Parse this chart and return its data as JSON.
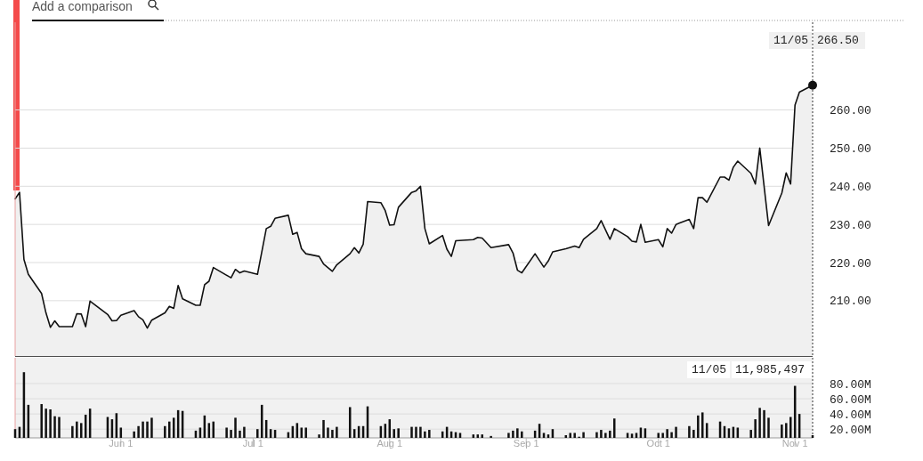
{
  "chart_data": [
    {
      "type": "area",
      "series": [
        {
          "color": "#111111",
          "x": [
            "--05-08",
            "--05-09",
            "--05-10",
            "--05-11",
            "--05-14",
            "--05-15",
            "--05-16",
            "--05-17",
            "--05-18",
            "--05-21",
            "--05-22",
            "--05-23",
            "--05-24",
            "--05-25",
            "--05-29",
            "--05-30",
            "--05-31",
            "--06-01",
            "--06-04",
            "--06-05",
            "--06-06",
            "--06-07",
            "--06-08",
            "--06-11",
            "--06-12",
            "--06-13",
            "--06-14",
            "--06-15",
            "--06-18",
            "--06-19",
            "--06-20",
            "--06-21",
            "--06-22",
            "--06-26",
            "--06-27",
            "--06-28",
            "--06-29",
            "--07-02",
            "--07-04",
            "--07-05",
            "--07-06",
            "--07-09",
            "--07-10",
            "--07-11",
            "--07-12",
            "--07-13",
            "--07-16",
            "--07-17",
            "--07-19",
            "--07-20",
            "--07-23",
            "--07-24",
            "--07-25",
            "--07-26",
            "--07-27",
            "--07-30",
            "--07-31",
            "--08-01",
            "--08-02",
            "--08-03",
            "--08-06",
            "--08-07",
            "--08-08",
            "--08-09",
            "--08-10",
            "--08-13",
            "--08-14",
            "--08-15",
            "--08-16",
            "--08-20",
            "--08-21",
            "--08-22",
            "--08-24",
            "--08-28",
            "--08-29",
            "--08-30",
            "--08-31",
            "--09-03",
            "--09-05",
            "--09-06",
            "--09-07",
            "--09-10",
            "--09-12",
            "--09-13",
            "--09-14",
            "--09-17",
            "--09-18",
            "--09-20",
            "--09-21",
            "--09-24",
            "--09-25",
            "--09-26",
            "--09-27",
            "--09-28",
            "--10-01",
            "--10-02",
            "--10-03",
            "--10-04",
            "--10-05",
            "--10-08",
            "--10-09",
            "--10-10",
            "--10-11",
            "--10-12",
            "--10-15",
            "--10-16",
            "--10-17",
            "--10-18",
            "--10-19",
            "--10-22",
            "--10-23",
            "--10-24",
            "--10-26",
            "--10-29",
            "--10-30",
            "--10-31",
            "--11-01",
            "--11-02",
            "--11-05"
          ],
          "values": [
            236.7,
            238.4,
            220.8,
            216.9,
            211.9,
            206.8,
            203.0,
            204.7,
            203.2,
            203.2,
            206.6,
            206.5,
            203.2,
            209.9,
            206.4,
            204.7,
            204.8,
            206.2,
            207.4,
            205.8,
            205.0,
            202.8,
            204.9,
            206.8,
            208.5,
            208.0,
            214.0,
            210.5,
            208.8,
            208.8,
            214.2,
            215.1,
            218.7,
            216.0,
            218.2,
            217.3,
            217.8,
            216.9,
            228.9,
            229.5,
            231.6,
            232.4,
            227.4,
            227.9,
            223.6,
            222.3,
            221.6,
            219.6,
            217.7,
            219.4,
            222.3,
            223.9,
            222.5,
            224.8,
            236.0,
            235.7,
            233.6,
            229.8,
            229.9,
            234.5,
            238.4,
            238.8,
            240.0,
            228.9,
            224.9,
            227.1,
            223.5,
            221.6,
            225.7,
            226.0,
            226.6,
            226.4,
            223.9,
            224.7,
            222.5,
            218.0,
            217.3,
            222.3,
            218.8,
            220.4,
            222.8,
            223.6,
            224.3,
            223.9,
            226.1,
            228.9,
            231.0,
            226.1,
            228.9,
            226.8,
            225.6,
            225.4,
            230.0,
            225.3,
            226.0,
            224.1,
            228.9,
            227.7,
            230.0,
            231.3,
            228.9,
            237.0,
            237.0,
            235.8,
            242.4,
            242.4,
            241.6,
            245.0,
            246.6,
            243.4,
            240.6,
            250.0,
            229.7,
            238.2,
            243.5,
            240.6,
            261.3,
            264.7,
            266.5
          ]
        }
      ],
      "xlim": [
        "--05-08",
        "--11-05"
      ],
      "ylim": [
        195.5,
        283
      ],
      "yticks": [
        {
          "value": 210,
          "label": "210.00"
        },
        {
          "value": 220,
          "label": "220.00"
        },
        {
          "value": 230,
          "label": "230.00"
        },
        {
          "value": 240,
          "label": "240.00"
        },
        {
          "value": 250,
          "label": "250.00"
        },
        {
          "value": 260,
          "label": "260.00"
        }
      ],
      "grid": "y",
      "tick_labels": "y",
      "ref_lines": [
        {
          "axis": "x",
          "value": "--11-05",
          "line_style": "dotted"
        }
      ],
      "annotations": [
        "Add a comparison",
        "11/05",
        "266.50"
      ]
    },
    {
      "type": "bar",
      "color": "#111111",
      "x": [
        "--05-08",
        "--05-09",
        "--05-10",
        "--05-11",
        "--05-14",
        "--05-15",
        "--05-16",
        "--05-17",
        "--05-18",
        "--05-21",
        "--05-22",
        "--05-23",
        "--05-24",
        "--05-25",
        "--05-29",
        "--05-30",
        "--05-31",
        "--06-01",
        "--06-04",
        "--06-05",
        "--06-06",
        "--06-07",
        "--06-08",
        "--06-11",
        "--06-12",
        "--06-13",
        "--06-14",
        "--06-15",
        "--06-18",
        "--06-19",
        "--06-20",
        "--06-21",
        "--06-22",
        "--06-25",
        "--06-26",
        "--06-27",
        "--06-28",
        "--06-29",
        "--07-02",
        "--07-03",
        "--07-04",
        "--07-05",
        "--07-06",
        "--07-09",
        "--07-10",
        "--07-11",
        "--07-12",
        "--07-13",
        "--07-16",
        "--07-17",
        "--07-18",
        "--07-19",
        "--07-20",
        "--07-23",
        "--07-24",
        "--07-25",
        "--07-26",
        "--07-27",
        "--07-30",
        "--07-31",
        "--08-01",
        "--08-02",
        "--08-03",
        "--08-06",
        "--08-07",
        "--08-08",
        "--08-09",
        "--08-10",
        "--08-13",
        "--08-14",
        "--08-15",
        "--08-16",
        "--08-17",
        "--08-20",
        "--08-21",
        "--08-22",
        "--08-24",
        "--08-28",
        "--08-29",
        "--08-30",
        "--08-31",
        "--09-03",
        "--09-04",
        "--09-05",
        "--09-06",
        "--09-07",
        "--09-10",
        "--09-11",
        "--09-12",
        "--09-13",
        "--09-14",
        "--09-17",
        "--09-18",
        "--09-19",
        "--09-20",
        "--09-21",
        "--09-24",
        "--09-25",
        "--09-26",
        "--09-27",
        "--09-28",
        "--10-01",
        "--10-02",
        "--10-03",
        "--10-04",
        "--10-05",
        "--10-08",
        "--10-09",
        "--10-10",
        "--10-11",
        "--10-12",
        "--10-15",
        "--10-16",
        "--10-17",
        "--10-18",
        "--10-19",
        "--10-22",
        "--10-23",
        "--10-24",
        "--10-25",
        "--10-26",
        "--10-29",
        "--10-30",
        "--10-31",
        "--11-01",
        "--11-02",
        "--11-05"
      ],
      "values": [
        20000000,
        23000000,
        95000000,
        52000000,
        53000000,
        47000000,
        46000000,
        37000000,
        36000000,
        24000000,
        30000000,
        28000000,
        39000000,
        47000000,
        36000000,
        33000000,
        41000000,
        22000000,
        17000000,
        24000000,
        30000000,
        30000000,
        35000000,
        24000000,
        30000000,
        35000000,
        45000000,
        44000000,
        18000000,
        22000000,
        38000000,
        28000000,
        30000000,
        22000000,
        19000000,
        35000000,
        18000000,
        23000000,
        20000000,
        52000000,
        32000000,
        20000000,
        19000000,
        16000000,
        24000000,
        28000000,
        22000000,
        22000000,
        13000000,
        32000000,
        22000000,
        19000000,
        23000000,
        49000000,
        20000000,
        24000000,
        24000000,
        50000000,
        24000000,
        27000000,
        33000000,
        20000000,
        21000000,
        23000000,
        23000000,
        23000000,
        17000000,
        19000000,
        17000000,
        23000000,
        17000000,
        16000000,
        15000000,
        13000000,
        13000000,
        13000000,
        11000000,
        15000000,
        18000000,
        21000000,
        17000000,
        18000000,
        27000000,
        15000000,
        13000000,
        20000000,
        12000000,
        15000000,
        15000000,
        10000000,
        16000000,
        16000000,
        19000000,
        15000000,
        18000000,
        34000000,
        15000000,
        14000000,
        15000000,
        22000000,
        21000000,
        15000000,
        15000000,
        20000000,
        16000000,
        23000000,
        24000000,
        19000000,
        38000000,
        42000000,
        28000000,
        30000000,
        24000000,
        21000000,
        23000000,
        22000000,
        19000000,
        33000000,
        48000000,
        45000000,
        35000000,
        26000000,
        28000000,
        36000000,
        77000000,
        40000000,
        11985497
      ],
      "xlim": [
        "--05-08",
        "--11-05"
      ],
      "ylim": [
        8500000,
        114000000
      ],
      "xticks": [
        {
          "value": "--06-01",
          "label": "Jun 1"
        },
        {
          "value": "--07-01",
          "label": "Jul 1"
        },
        {
          "value": "--08-01",
          "label": "Aug 1"
        },
        {
          "value": "--09-01",
          "label": "Sep 1"
        },
        {
          "value": "--10-01",
          "label": "Oct 1"
        },
        {
          "value": "--11-01",
          "label": "Nov 1"
        }
      ],
      "yticks": [
        {
          "value": 20000000,
          "label": "20.00M"
        },
        {
          "value": 40000000,
          "label": "40.00M"
        },
        {
          "value": 60000000,
          "label": "60.00M"
        },
        {
          "value": 80000000,
          "label": "80.00M"
        }
      ],
      "grid": "y",
      "ref_lines": [
        {
          "axis": "x",
          "value": "--11-05",
          "line_style": "dotted"
        }
      ],
      "annotations": [
        "11/05",
        "11,985,497"
      ]
    }
  ]
}
